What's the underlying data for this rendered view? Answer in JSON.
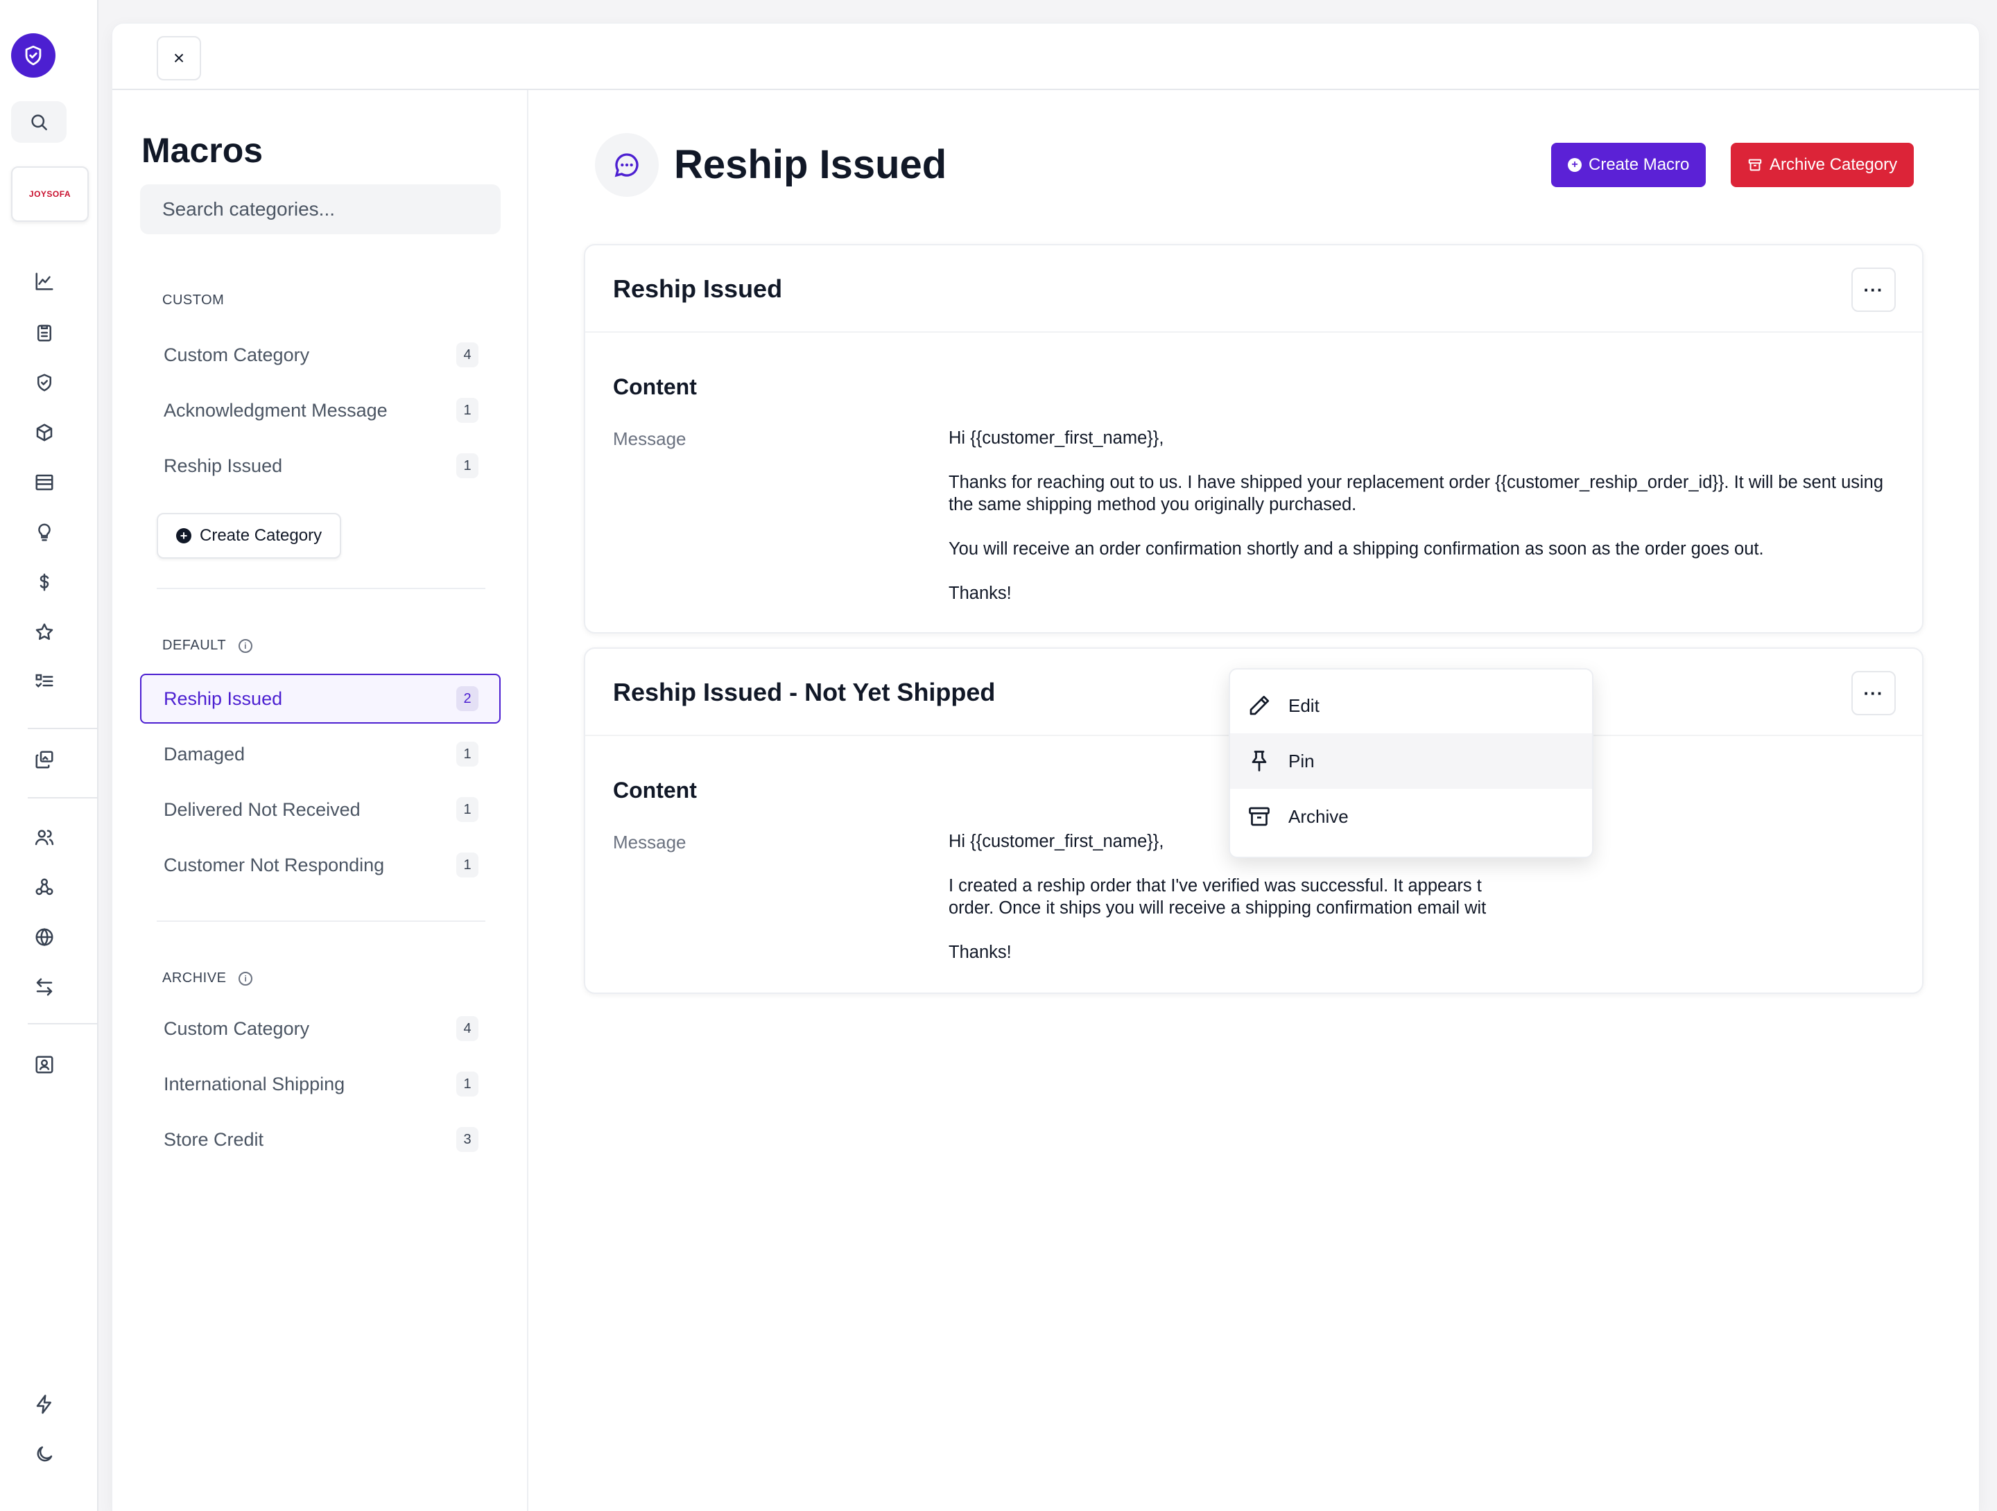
{
  "brand": {
    "store_logo_text": "JOYSOFA",
    "accent_color": "#4c1fd1",
    "danger_color": "#dc2438"
  },
  "rail": {
    "icons": [
      "shield-check-icon",
      "search-icon",
      "chart-line-icon",
      "clipboard-icon",
      "shield-icon",
      "cube-icon",
      "table-icon",
      "lightbulb-icon",
      "dollar-icon",
      "star-icon",
      "checklist-icon",
      "gallery-icon",
      "users-icon",
      "webhook-icon",
      "globe-icon",
      "arrows-swap-icon",
      "contact-card-icon",
      "bolt-icon",
      "moon-icon"
    ]
  },
  "modal": {
    "close_label": "×"
  },
  "categories": {
    "title": "Macros",
    "search_placeholder": "Search categories...",
    "custom": {
      "label": "CUSTOM",
      "items": [
        {
          "label": "Custom Category",
          "count": "4"
        },
        {
          "label": "Acknowledgment Message",
          "count": "1"
        },
        {
          "label": "Reship Issued",
          "count": "1"
        }
      ],
      "create_label": "Create Category"
    },
    "default": {
      "label": "DEFAULT",
      "items": [
        {
          "label": "Reship Issued",
          "count": "2"
        },
        {
          "label": "Damaged",
          "count": "1"
        },
        {
          "label": "Delivered Not Received",
          "count": "1"
        },
        {
          "label": "Customer Not Responding",
          "count": "1"
        }
      ]
    },
    "archive": {
      "label": "ARCHIVE",
      "items": [
        {
          "label": "Custom Category",
          "count": "4"
        },
        {
          "label": "International Shipping",
          "count": "1"
        },
        {
          "label": "Store Credit",
          "count": "3"
        }
      ]
    }
  },
  "main": {
    "title": "Reship Issued",
    "create_macro_label": "Create Macro",
    "archive_category_label": "Archive Category",
    "macros": [
      {
        "title": "Reship Issued",
        "content_label": "Content",
        "message_label": "Message",
        "paragraphs": [
          "Hi {{customer_first_name}},",
          "Thanks for reaching out to us. I have shipped your replacement order {{customer_reship_order_id}}. It will be sent using the same shipping method you originally purchased.",
          "You will receive an order confirmation shortly and a shipping confirmation as soon as the order goes out.",
          "Thanks!"
        ]
      },
      {
        "title": "Reship Issued - Not Yet Shipped",
        "content_label": "Content",
        "message_label": "Message",
        "paragraphs": [
          "Hi {{customer_first_name}},",
          "I created a reship order that I've verified was successful. It appears t",
          "order. Once it ships you will receive a shipping confirmation email wit",
          "Thanks!"
        ]
      }
    ],
    "menu": {
      "items": [
        {
          "label": "Edit",
          "icon": "pencil-icon"
        },
        {
          "label": "Pin",
          "icon": "pin-icon"
        },
        {
          "label": "Archive",
          "icon": "archive-box-icon"
        }
      ]
    }
  }
}
